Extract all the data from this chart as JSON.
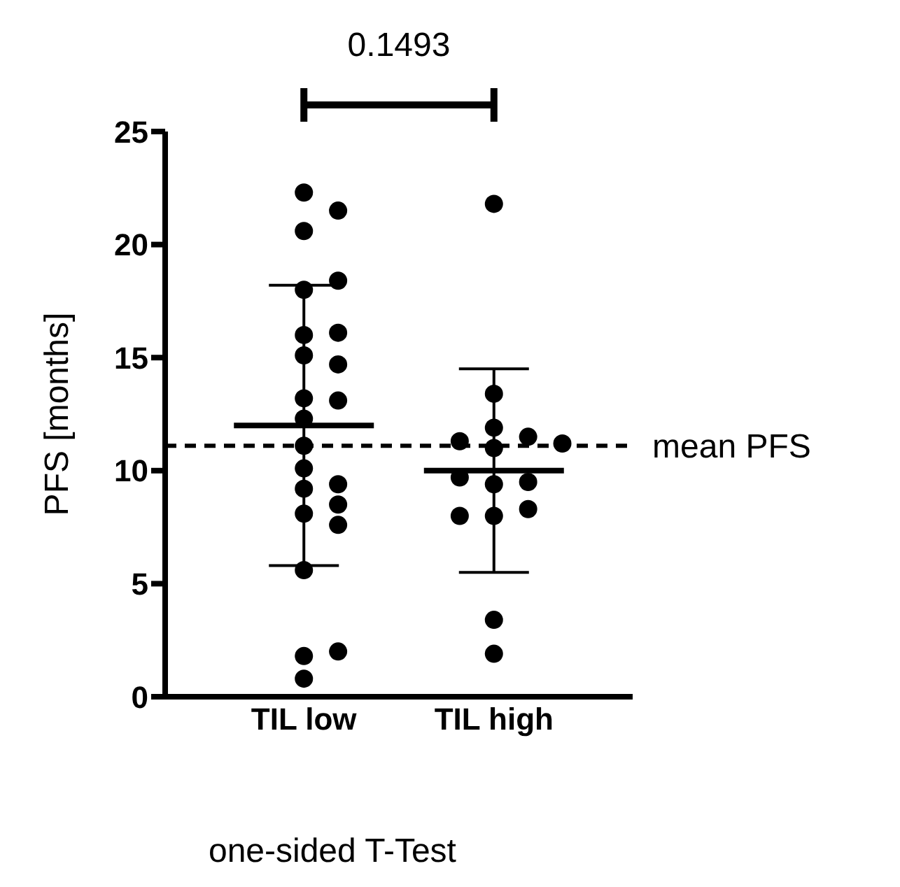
{
  "chart_data": {
    "type": "scatter",
    "ylabel": "PFS [months]",
    "categories": [
      "TIL low",
      "TIL high"
    ],
    "ylim": [
      0,
      25
    ],
    "yticks": [
      0,
      5,
      10,
      15,
      20,
      25
    ],
    "series": [
      {
        "marker": "circle",
        "color": "#000000",
        "x": [
          "TIL low",
          "TIL low",
          "TIL low",
          "TIL low",
          "TIL low",
          "TIL low",
          "TIL low",
          "TIL low",
          "TIL low",
          "TIL low",
          "TIL low",
          "TIL low",
          "TIL low",
          "TIL low",
          "TIL low",
          "TIL low",
          "TIL low",
          "TIL low",
          "TIL low",
          "TIL low",
          "TIL low",
          "TIL low",
          "TIL low",
          "TIL high",
          "TIL high",
          "TIL high",
          "TIL high",
          "TIL high",
          "TIL high",
          "TIL high",
          "TIL high",
          "TIL high",
          "TIL high",
          "TIL high",
          "TIL high",
          "TIL high",
          "TIL high",
          "TIL high"
        ],
        "values": [
          22.3,
          21.5,
          20.6,
          18.0,
          18.4,
          16.0,
          16.1,
          15.1,
          14.7,
          13.2,
          13.1,
          12.3,
          11.1,
          10.1,
          9.4,
          9.2,
          8.5,
          8.1,
          7.6,
          5.6,
          1.8,
          2.0,
          0.8,
          21.8,
          13.4,
          11.9,
          11.5,
          11.3,
          11.2,
          11.0,
          9.4,
          9.5,
          9.7,
          8.0,
          8.3,
          8.0,
          3.4,
          1.9
        ]
      },
      {
        "type": "box",
        "color": "#000000",
        "x": [
          "TIL low",
          "TIL high"
        ],
        "boxes": [
          {
            "low": 5.8,
            "q1": 12.0,
            "median": 12.0,
            "q3": 12.0,
            "high": 18.2
          },
          {
            "low": 5.5,
            "q1": 10.0,
            "median": 10.0,
            "q3": 10.0,
            "high": 14.5
          }
        ]
      }
    ],
    "ref_lines": [
      {
        "axis": "y",
        "value": 11.1,
        "label": "mean PFS",
        "line_style": "dashed",
        "color": "#000000"
      }
    ],
    "annotations": [
      "0.1493",
      "one-sided T-Test"
    ]
  }
}
